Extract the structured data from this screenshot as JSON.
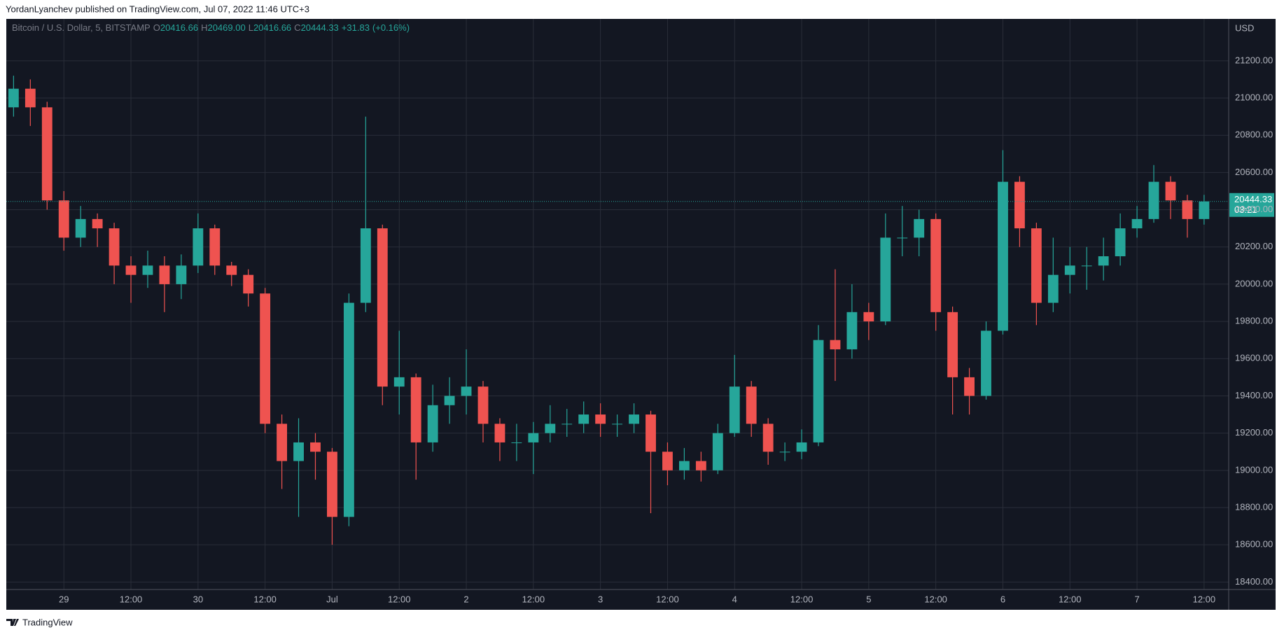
{
  "header": "YordanLyanchev published on TradingView.com, Jul 07, 2022 11:46 UTC+3",
  "footer": "TradingView",
  "chart_data": {
    "type": "candlestick",
    "legend": {
      "symbol": "Bitcoin / U.S. Dollar, 5, BITSTAMP",
      "o_label": "O",
      "o": 20416.66,
      "h_label": "H",
      "h": "20469.00",
      "l_label": "L",
      "l": 20416.66,
      "c_label": "C",
      "c": 20444.33,
      "change": "+31.83",
      "change_pct": "(+0.16%)"
    },
    "currency": "USD",
    "countdown": "03:21",
    "colors": {
      "up": "#26a69a",
      "down": "#ef5350"
    },
    "grid": true,
    "xlim": [
      -10.3,
      208.4
    ],
    "ylim": [
      18360,
      21425
    ],
    "xticks": [
      {
        "value": 0,
        "label": "29"
      },
      {
        "value": 12,
        "label": "12:00"
      },
      {
        "value": 24,
        "label": "30"
      },
      {
        "value": 36,
        "label": "12:00"
      },
      {
        "value": 48,
        "label": "Jul"
      },
      {
        "value": 60,
        "label": "12:00"
      },
      {
        "value": 72,
        "label": "2"
      },
      {
        "value": 84,
        "label": "12:00"
      },
      {
        "value": 96,
        "label": "3"
      },
      {
        "value": 108,
        "label": "12:00"
      },
      {
        "value": 120,
        "label": "4"
      },
      {
        "value": 132,
        "label": "12:00"
      },
      {
        "value": 144,
        "label": "5"
      },
      {
        "value": 156,
        "label": "12:00"
      },
      {
        "value": 168,
        "label": "6"
      },
      {
        "value": 180,
        "label": "12:00"
      },
      {
        "value": 192,
        "label": "7"
      },
      {
        "value": 204,
        "label": "12:00"
      }
    ],
    "yticks": [
      {
        "value": 18400,
        "label": "18400.00"
      },
      {
        "value": 18600,
        "label": "18600.00"
      },
      {
        "value": 18800,
        "label": "18800.00"
      },
      {
        "value": 19000,
        "label": "19000.00"
      },
      {
        "value": 19200,
        "label": "19200.00"
      },
      {
        "value": 19400,
        "label": "19400.00"
      },
      {
        "value": 19600,
        "label": "19600.00"
      },
      {
        "value": 19800,
        "label": "19800.00"
      },
      {
        "value": 20000,
        "label": "20000.00"
      },
      {
        "value": 20200,
        "label": "20200.00"
      },
      {
        "value": 20400,
        "label": "20400.00"
      },
      {
        "value": 20600,
        "label": "20600.00"
      },
      {
        "value": 20800,
        "label": "20800.00"
      },
      {
        "value": 21000,
        "label": "21000.00"
      },
      {
        "value": 21200,
        "label": "21200.00"
      }
    ],
    "x": [
      -9,
      -6,
      -3,
      0,
      3,
      6,
      9,
      12,
      15,
      18,
      21,
      24,
      27,
      30,
      33,
      36,
      39,
      42,
      45,
      48,
      51,
      54,
      57,
      60,
      63,
      66,
      69,
      72,
      75,
      78,
      81,
      84,
      87,
      90,
      93,
      96,
      99,
      102,
      105,
      108,
      111,
      114,
      117,
      120,
      123,
      126,
      129,
      132,
      135,
      138,
      141,
      144,
      147,
      150,
      153,
      156,
      159,
      162,
      165,
      168,
      171,
      174,
      177,
      180,
      183,
      186,
      189,
      192,
      195,
      198,
      201,
      204
    ],
    "open": [
      20950,
      21050,
      20950,
      20450,
      20250,
      20350,
      20300,
      20100,
      20050,
      20100,
      20000,
      20100,
      20300,
      20100,
      20050,
      19950,
      19250,
      19050,
      19150,
      19100,
      18750,
      19900,
      20300,
      19450,
      19500,
      19150,
      19350,
      19400,
      19450,
      19250,
      19150,
      19150,
      19200,
      19250,
      19250,
      19300,
      19250,
      19250,
      19300,
      19100,
      19000,
      19050,
      19000,
      19200,
      19450,
      19250,
      19100,
      19100,
      19150,
      19700,
      19650,
      19850,
      19800,
      20250,
      20250,
      20350,
      19850,
      19500,
      19400,
      19750,
      20550,
      20300,
      19900,
      20050,
      20100,
      20100,
      20150,
      20300,
      20350,
      20550,
      20450,
      20350
    ],
    "high": [
      21120,
      21100,
      20980,
      20500,
      20420,
      20380,
      20330,
      20150,
      20180,
      20150,
      20160,
      20380,
      20320,
      20120,
      20080,
      19980,
      19300,
      19280,
      19200,
      19120,
      19950,
      20900,
      20320,
      19750,
      19520,
      19460,
      19500,
      19650,
      19480,
      19280,
      19250,
      19260,
      19350,
      19330,
      19370,
      19360,
      19300,
      19360,
      19320,
      19150,
      19120,
      19100,
      19250,
      19620,
      19480,
      19280,
      19150,
      19220,
      19780,
      20080,
      20000,
      19900,
      20380,
      20420,
      20400,
      20380,
      19880,
      19550,
      19800,
      20720,
      20580,
      20330,
      20250,
      20200,
      20200,
      20250,
      20380,
      20420,
      20640,
      20580,
      20480,
      20480
    ],
    "low": [
      20900,
      20850,
      20400,
      20180,
      20200,
      20200,
      20000,
      19900,
      19980,
      19850,
      19920,
      20060,
      20050,
      19990,
      19880,
      19200,
      18900,
      18750,
      18950,
      18600,
      18700,
      19850,
      19350,
      19300,
      18950,
      19100,
      19250,
      19300,
      19150,
      19050,
      19050,
      18980,
      19150,
      19180,
      19200,
      19180,
      19180,
      19200,
      18770,
      18920,
      18950,
      18940,
      18980,
      19180,
      19180,
      19030,
      19050,
      19060,
      19130,
      19480,
      19600,
      19700,
      19780,
      20150,
      20150,
      19750,
      19300,
      19300,
      19380,
      19730,
      20200,
      19780,
      19850,
      19950,
      19970,
      20020,
      20100,
      20250,
      20330,
      20350,
      20250,
      20320
    ],
    "close": [
      21050,
      20950,
      20450,
      20250,
      20350,
      20300,
      20100,
      20050,
      20100,
      20000,
      20100,
      20300,
      20100,
      20050,
      19950,
      19250,
      19050,
      19150,
      19100,
      18750,
      19900,
      20300,
      19450,
      19500,
      19150,
      19350,
      19400,
      19450,
      19250,
      19150,
      19150,
      19200,
      19250,
      19250,
      19300,
      19250,
      19250,
      19300,
      19100,
      19000,
      19050,
      19000,
      19200,
      19450,
      19250,
      19100,
      19100,
      19150,
      19700,
      19650,
      19850,
      19800,
      20250,
      20250,
      20350,
      19850,
      19500,
      19400,
      19750,
      20550,
      20300,
      19900,
      20050,
      20100,
      20100,
      20150,
      20300,
      20350,
      20550,
      20450,
      20350,
      20444.33
    ]
  }
}
